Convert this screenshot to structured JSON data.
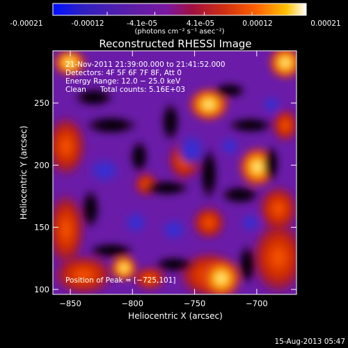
{
  "colorbar": {
    "tick_labels": [
      "-0.00021",
      "-0.00012",
      "-4.1e-05",
      "4.1e-05",
      "0.00012",
      "0.00021"
    ],
    "tick_values": [
      -0.00021,
      -0.00012,
      -4.1e-05,
      4.1e-05,
      0.00012,
      0.00021
    ],
    "range": [
      -0.00021,
      0.00021
    ],
    "unit_label": "(photons cm⁻² s⁻¹ asec⁻²)",
    "colors": [
      "#0010ff",
      "#3020c0",
      "#5a1ea8",
      "#7a18a0",
      "#a01040",
      "#d03010",
      "#ff6000",
      "#ffc000",
      "#ffffff"
    ]
  },
  "chart_data": {
    "type": "heatmap",
    "title": "Reconstructed RHESSI Image",
    "xlabel": "Heliocentric X (arcsec)",
    "ylabel": "Heliocentric Y (arcsec)",
    "xlim": [
      -864,
      -668
    ],
    "ylim": [
      96,
      292
    ],
    "x_ticks": [
      -850,
      -800,
      -750,
      -700
    ],
    "y_ticks": [
      100,
      150,
      200,
      250
    ],
    "x_tick_labels": [
      "−850",
      "−800",
      "−750",
      "−700"
    ],
    "y_tick_labels": [
      "100",
      "150",
      "200",
      "250"
    ],
    "annotations": [
      "21-Nov-2011 21:39:00.000 to 21:41:52.000",
      "Detectors: 4F 5F 6F 7F 8F, Att 0",
      "Energy Range: 12.0 − 25.0 keV",
      "Clean",
      "Total counts: 5.16E+03"
    ],
    "peak_label": "Position of Peak = [−725,101]",
    "peak": [
      -725,
      101
    ],
    "grid": false
  },
  "footer": {
    "date": "15-Aug-2013 05:47"
  }
}
